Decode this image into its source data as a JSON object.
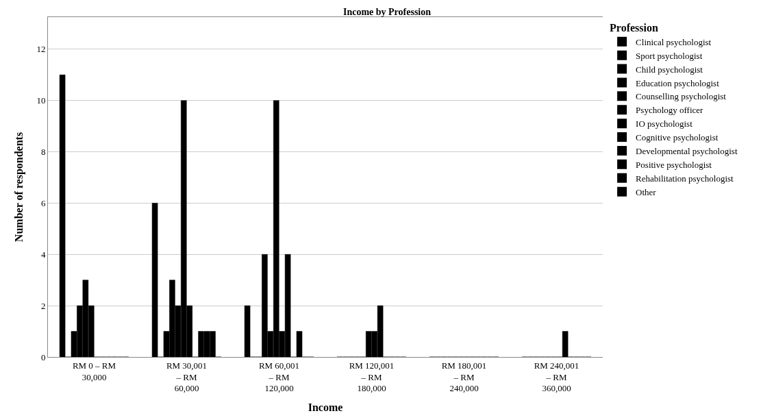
{
  "chart_data": {
    "type": "bar",
    "title": "Income by Profession",
    "xlabel": "Income",
    "ylabel": "Number of respondents",
    "legend_title": "Profession",
    "categories": [
      "RM 0 – RM 30,000",
      "RM 30,001 – RM 60,000",
      "RM 60,001 – RM 120,000",
      "RM 120,001 – RM 180,000",
      "RM 180,001 – RM 240,000",
      "RM 240,001 – RM 360,000"
    ],
    "series": [
      {
        "name": "Clinical psychologist",
        "color": "#000000",
        "values": [
          11,
          6,
          2,
          0,
          0,
          0
        ]
      },
      {
        "name": "Sport psychologist",
        "color": "#000000",
        "values": [
          0,
          0,
          0,
          0,
          0,
          0
        ]
      },
      {
        "name": "Child psychologist",
        "color": "#000000",
        "values": [
          1,
          1,
          0,
          0,
          0,
          0
        ]
      },
      {
        "name": "Education psychologist",
        "color": "#000000",
        "values": [
          2,
          3,
          4,
          0,
          0,
          0
        ]
      },
      {
        "name": "Counselling psychologist",
        "color": "#000000",
        "values": [
          3,
          2,
          1,
          0,
          0,
          0
        ]
      },
      {
        "name": "Psychology officer",
        "color": "#000000",
        "values": [
          2,
          10,
          10,
          1,
          0,
          0
        ]
      },
      {
        "name": "IO psychologist",
        "color": "#000000",
        "values": [
          0,
          2,
          1,
          1,
          0,
          0
        ]
      },
      {
        "name": "Cognitive psychologist",
        "color": "#000000",
        "values": [
          0,
          0,
          4,
          2,
          0,
          1
        ]
      },
      {
        "name": "Developmental psychologist",
        "color": "#000000",
        "values": [
          0,
          1,
          0,
          0,
          0,
          0
        ]
      },
      {
        "name": "Positive psychologist",
        "color": "#000000",
        "values": [
          0,
          1,
          1,
          0,
          0,
          0
        ]
      },
      {
        "name": "Rehabilitation psychologist",
        "color": "#000000",
        "values": [
          0,
          1,
          0,
          0,
          0,
          0
        ]
      },
      {
        "name": "Other",
        "color": "#000000",
        "values": [
          0,
          0,
          0,
          0,
          0,
          0
        ]
      }
    ],
    "ylim": [
      0,
      13.25
    ],
    "yticks": [
      0,
      2,
      4,
      6,
      8,
      10,
      12
    ],
    "grid": "y",
    "legend": "top right"
  }
}
